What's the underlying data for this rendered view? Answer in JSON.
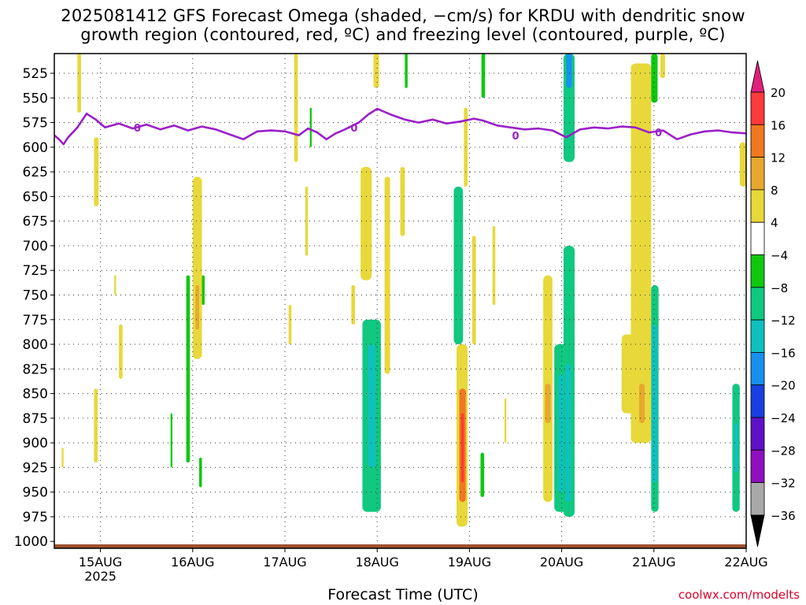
{
  "header": {
    "title_line1": "2025081412 GFS Forecast Omega (shaded, −cm/s) for KRDU with dendritic snow",
    "title_line2": "growth region (contoured, red, ºC) and freezing level (contoured, purple, ºC)"
  },
  "footer": {
    "xlabel": "Forecast Time (UTC)",
    "credit": "coolwx.com/modelts"
  },
  "chart_data": {
    "type": "heatmap",
    "title": "2025081412 GFS Forecast Omega (shaded, −cm/s) for KRDU with dendritic snow growth region (contoured, red, ºC) and freezing level (contoured, purple, ºC)",
    "xlabel": "Forecast Time (UTC)",
    "ylabel": "",
    "y_axis": "pressure level (hPa), inverted",
    "y_ticks": [
      525,
      550,
      575,
      600,
      625,
      650,
      675,
      700,
      725,
      750,
      775,
      800,
      825,
      850,
      875,
      900,
      925,
      950,
      975,
      1000
    ],
    "x_ticks": [
      {
        "day": 15,
        "label": "15AUG",
        "sublabel": "2025"
      },
      {
        "day": 16,
        "label": "16AUG",
        "sublabel": ""
      },
      {
        "day": 17,
        "label": "17AUG",
        "sublabel": ""
      },
      {
        "day": 18,
        "label": "18AUG",
        "sublabel": ""
      },
      {
        "day": 19,
        "label": "19AUG",
        "sublabel": ""
      },
      {
        "day": 20,
        "label": "20AUG",
        "sublabel": ""
      },
      {
        "day": 21,
        "label": "21AUG",
        "sublabel": ""
      },
      {
        "day": 22,
        "label": "22AUG",
        "sublabel": ""
      }
    ],
    "xlim_days": [
      14.5,
      22.0
    ],
    "ylim_hpa": [
      505,
      1007
    ],
    "grid": true,
    "colorbar": {
      "position": "right",
      "levels": [
        {
          "label": "20",
          "color": "#ff3a3a"
        },
        {
          "label": "16",
          "color": "#f07820"
        },
        {
          "label": "12",
          "color": "#e8a830"
        },
        {
          "label": "8",
          "color": "#e8d83a"
        },
        {
          "label": "4",
          "color": "#ffffff"
        },
        {
          "label": "−4",
          "color": "#10c810"
        },
        {
          "label": "−8",
          "color": "#10c880"
        },
        {
          "label": "−12",
          "color": "#10c0c0"
        },
        {
          "label": "−16",
          "color": "#1890f0"
        },
        {
          "label": "−20",
          "color": "#1840e0"
        },
        {
          "label": "−24",
          "color": "#6010c8"
        },
        {
          "label": "−28",
          "color": "#9010c0"
        },
        {
          "label": "−32",
          "color": "#a8a8a8"
        },
        {
          "label": "−36",
          "color": "#000000"
        }
      ],
      "top_arrow_color": "#e0207a",
      "bottom_arrow_color": "#000000"
    },
    "freezing_level": {
      "color": "#9a20c8",
      "label": "0",
      "points": [
        [
          14.5,
          588
        ],
        [
          14.55,
          592
        ],
        [
          14.6,
          597
        ],
        [
          14.65,
          590
        ],
        [
          14.75,
          580
        ],
        [
          14.85,
          566
        ],
        [
          14.95,
          572
        ],
        [
          15.05,
          580
        ],
        [
          15.2,
          576
        ],
        [
          15.35,
          581
        ],
        [
          15.5,
          577
        ],
        [
          15.65,
          582
        ],
        [
          15.8,
          578
        ],
        [
          15.95,
          583
        ],
        [
          16.1,
          579
        ],
        [
          16.25,
          582
        ],
        [
          16.4,
          587
        ],
        [
          16.55,
          592
        ],
        [
          16.7,
          584
        ],
        [
          16.85,
          583
        ],
        [
          17.0,
          584
        ],
        [
          17.15,
          588
        ],
        [
          17.25,
          581
        ],
        [
          17.35,
          585
        ],
        [
          17.45,
          592
        ],
        [
          17.55,
          586
        ],
        [
          17.65,
          582
        ],
        [
          17.8,
          575
        ],
        [
          17.9,
          567
        ],
        [
          18.0,
          561
        ],
        [
          18.15,
          567
        ],
        [
          18.3,
          572
        ],
        [
          18.45,
          575
        ],
        [
          18.6,
          572
        ],
        [
          18.75,
          576
        ],
        [
          18.9,
          574
        ],
        [
          19.05,
          571
        ],
        [
          19.15,
          573
        ],
        [
          19.3,
          578
        ],
        [
          19.45,
          580
        ],
        [
          19.6,
          582
        ],
        [
          19.75,
          581
        ],
        [
          19.9,
          583
        ],
        [
          20.05,
          590
        ],
        [
          20.2,
          582
        ],
        [
          20.35,
          580
        ],
        [
          20.5,
          581
        ],
        [
          20.65,
          579
        ],
        [
          20.8,
          580
        ],
        [
          20.95,
          585
        ],
        [
          21.1,
          583
        ],
        [
          21.25,
          592
        ],
        [
          21.4,
          587
        ],
        [
          21.55,
          584
        ],
        [
          21.7,
          583
        ],
        [
          21.85,
          585
        ],
        [
          22.0,
          586
        ]
      ]
    },
    "ground_level_color": "#a0522d",
    "omega_regions": [
      {
        "day_from": 14.75,
        "day_to": 14.79,
        "hpa_from": 505,
        "hpa_to": 565,
        "value": 5
      },
      {
        "day_from": 14.93,
        "day_to": 14.98,
        "hpa_from": 590,
        "hpa_to": 660,
        "value": 5
      },
      {
        "day_from": 15.15,
        "day_to": 15.17,
        "hpa_from": 730,
        "hpa_to": 750,
        "value": 5
      },
      {
        "day_from": 15.2,
        "day_to": 15.24,
        "hpa_from": 780,
        "hpa_to": 835,
        "value": 5
      },
      {
        "day_from": 14.93,
        "day_to": 14.97,
        "hpa_from": 845,
        "hpa_to": 920,
        "value": 5
      },
      {
        "day_from": 14.58,
        "day_to": 14.6,
        "hpa_from": 905,
        "hpa_to": 925,
        "value": 5
      },
      {
        "day_from": 15.93,
        "day_to": 15.97,
        "hpa_from": 730,
        "hpa_to": 920,
        "value": -7
      },
      {
        "day_from": 16.0,
        "day_to": 16.1,
        "hpa_from": 630,
        "hpa_to": 815,
        "value": 5
      },
      {
        "day_from": 16.03,
        "day_to": 16.07,
        "hpa_from": 740,
        "hpa_to": 785,
        "value": 9
      },
      {
        "day_from": 16.1,
        "day_to": 16.13,
        "hpa_from": 730,
        "hpa_to": 760,
        "value": -7
      },
      {
        "day_from": 16.07,
        "day_to": 16.1,
        "hpa_from": 915,
        "hpa_to": 945,
        "value": -7
      },
      {
        "day_from": 15.76,
        "day_to": 15.78,
        "hpa_from": 870,
        "hpa_to": 925,
        "value": -7
      },
      {
        "day_from": 17.1,
        "day_to": 17.14,
        "hpa_from": 505,
        "hpa_to": 615,
        "value": 5
      },
      {
        "day_from": 17.27,
        "day_to": 17.29,
        "hpa_from": 560,
        "hpa_to": 600,
        "value": -7
      },
      {
        "day_from": 17.22,
        "day_to": 17.25,
        "hpa_from": 640,
        "hpa_to": 710,
        "value": 5
      },
      {
        "day_from": 17.04,
        "day_to": 17.07,
        "hpa_from": 760,
        "hpa_to": 800,
        "value": 5
      },
      {
        "day_from": 17.72,
        "day_to": 17.76,
        "hpa_from": 740,
        "hpa_to": 780,
        "value": 5
      },
      {
        "day_from": 17.82,
        "day_to": 17.94,
        "hpa_from": 620,
        "hpa_to": 735,
        "value": 5
      },
      {
        "day_from": 17.84,
        "day_to": 18.04,
        "hpa_from": 775,
        "hpa_to": 970,
        "value": -9
      },
      {
        "day_from": 17.9,
        "day_to": 17.98,
        "hpa_from": 800,
        "hpa_to": 925,
        "value": -14
      },
      {
        "day_from": 18.08,
        "day_to": 18.14,
        "hpa_from": 630,
        "hpa_to": 830,
        "value": 5
      },
      {
        "day_from": 18.25,
        "day_to": 18.3,
        "hpa_from": 620,
        "hpa_to": 690,
        "value": 5
      },
      {
        "day_from": 17.96,
        "day_to": 18.02,
        "hpa_from": 505,
        "hpa_to": 540,
        "value": 5
      },
      {
        "day_from": 18.3,
        "day_to": 18.33,
        "hpa_from": 505,
        "hpa_to": 540,
        "value": -7
      },
      {
        "day_from": 18.83,
        "day_to": 18.93,
        "hpa_from": 640,
        "hpa_to": 800,
        "value": -9
      },
      {
        "day_from": 18.86,
        "day_to": 18.98,
        "hpa_from": 800,
        "hpa_to": 985,
        "value": 6
      },
      {
        "day_from": 18.89,
        "day_to": 18.96,
        "hpa_from": 845,
        "hpa_to": 960,
        "value": 12
      },
      {
        "day_from": 18.91,
        "day_to": 18.94,
        "hpa_from": 870,
        "hpa_to": 940,
        "value": 20
      },
      {
        "day_from": 18.94,
        "day_to": 18.98,
        "hpa_from": 560,
        "hpa_to": 640,
        "value": 5
      },
      {
        "day_from": 19.03,
        "day_to": 19.07,
        "hpa_from": 690,
        "hpa_to": 800,
        "value": 5
      },
      {
        "day_from": 19.12,
        "day_to": 19.16,
        "hpa_from": 910,
        "hpa_to": 955,
        "value": -7
      },
      {
        "day_from": 19.13,
        "day_to": 19.17,
        "hpa_from": 505,
        "hpa_to": 550,
        "value": -7
      },
      {
        "day_from": 19.25,
        "day_to": 19.28,
        "hpa_from": 680,
        "hpa_to": 760,
        "value": 5
      },
      {
        "day_from": 19.38,
        "day_to": 19.4,
        "hpa_from": 855,
        "hpa_to": 900,
        "value": 5
      },
      {
        "day_from": 19.8,
        "day_to": 19.9,
        "hpa_from": 730,
        "hpa_to": 960,
        "value": 6
      },
      {
        "day_from": 19.82,
        "day_to": 19.88,
        "hpa_from": 840,
        "hpa_to": 880,
        "value": 10
      },
      {
        "day_from": 19.92,
        "day_to": 20.1,
        "hpa_from": 800,
        "hpa_to": 970,
        "value": -8
      },
      {
        "day_from": 19.96,
        "day_to": 20.04,
        "hpa_from": 830,
        "hpa_to": 950,
        "value": -13
      },
      {
        "day_from": 20.02,
        "day_to": 20.14,
        "hpa_from": 700,
        "hpa_to": 975,
        "value": -9
      },
      {
        "day_from": 20.04,
        "day_to": 20.1,
        "hpa_from": 820,
        "hpa_to": 960,
        "value": -13
      },
      {
        "day_from": 20.02,
        "day_to": 20.14,
        "hpa_from": 505,
        "hpa_to": 615,
        "value": -9
      },
      {
        "day_from": 20.05,
        "day_to": 20.11,
        "hpa_from": 505,
        "hpa_to": 540,
        "value": -17
      },
      {
        "day_from": 20.75,
        "day_to": 20.97,
        "hpa_from": 515,
        "hpa_to": 900,
        "value": 5
      },
      {
        "day_from": 20.65,
        "day_to": 20.95,
        "hpa_from": 790,
        "hpa_to": 870,
        "value": 5
      },
      {
        "day_from": 20.84,
        "day_to": 20.9,
        "hpa_from": 840,
        "hpa_to": 880,
        "value": 10
      },
      {
        "day_from": 20.97,
        "day_to": 21.05,
        "hpa_from": 740,
        "hpa_to": 970,
        "value": -8
      },
      {
        "day_from": 20.98,
        "day_to": 21.04,
        "hpa_from": 780,
        "hpa_to": 940,
        "value": -12
      },
      {
        "day_from": 20.97,
        "day_to": 21.04,
        "hpa_from": 505,
        "hpa_to": 555,
        "value": -7
      },
      {
        "day_from": 21.07,
        "day_to": 21.12,
        "hpa_from": 505,
        "hpa_to": 530,
        "value": 5
      },
      {
        "day_from": 21.85,
        "day_to": 21.93,
        "hpa_from": 840,
        "hpa_to": 970,
        "value": -8
      },
      {
        "day_from": 21.87,
        "day_to": 21.91,
        "hpa_from": 880,
        "hpa_to": 930,
        "value": -12
      },
      {
        "day_from": 21.93,
        "day_to": 22.0,
        "hpa_from": 595,
        "hpa_to": 640,
        "value": 5
      }
    ]
  }
}
